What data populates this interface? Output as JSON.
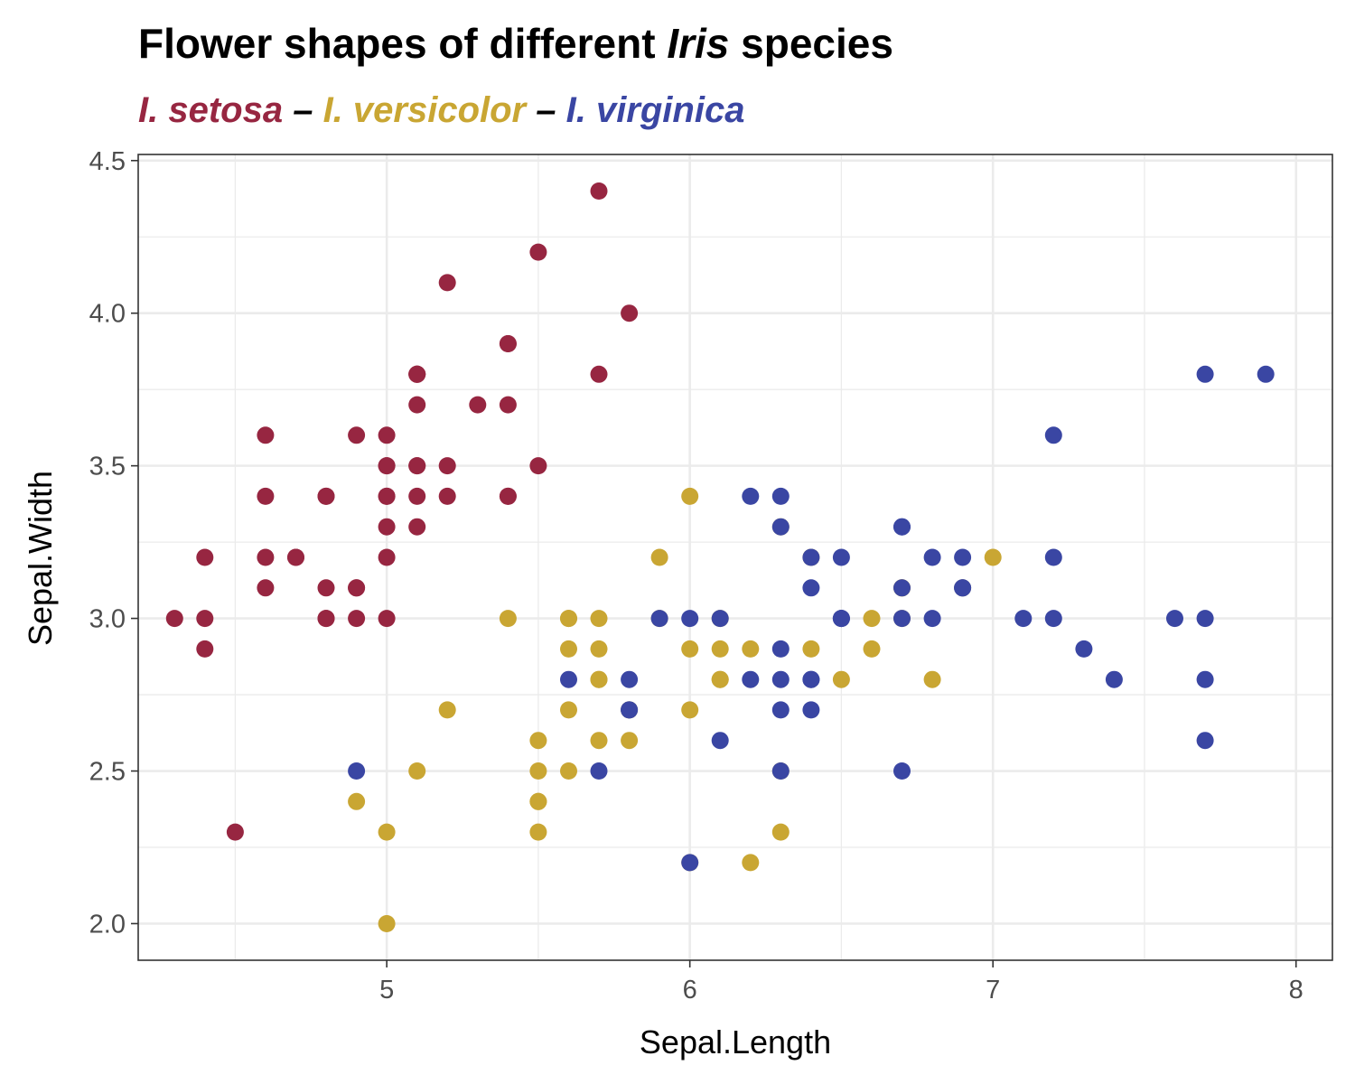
{
  "chart_data": {
    "type": "scatter",
    "title": {
      "prefix": "Flower shapes of different ",
      "italic": "Iris",
      "suffix": " species"
    },
    "subtitle": {
      "parts": [
        {
          "text": "I. setosa",
          "series": "setosa"
        },
        {
          "text": " – ",
          "series": null
        },
        {
          "text": "I. versicolor",
          "series": "versicolor"
        },
        {
          "text": " – ",
          "series": null
        },
        {
          "text": "I. virginica",
          "series": "virginica"
        }
      ]
    },
    "xlabel": "Sepal.Length",
    "ylabel": "Sepal.Width",
    "xlim": [
      4.18,
      8.12
    ],
    "ylim": [
      1.88,
      4.52
    ],
    "x_ticks": [
      5,
      6,
      7,
      8
    ],
    "x_tick_labels": [
      "5",
      "6",
      "7",
      "8"
    ],
    "y_ticks": [
      2.0,
      2.5,
      3.0,
      3.5,
      4.0,
      4.5
    ],
    "y_tick_labels": [
      "2.0",
      "2.5",
      "3.0",
      "3.5",
      "4.0",
      "4.5"
    ],
    "grid": true,
    "legend": "none",
    "series": [
      {
        "key": "setosa",
        "color": "#972641",
        "points": [
          [
            5.1,
            3.5
          ],
          [
            4.9,
            3.0
          ],
          [
            4.7,
            3.2
          ],
          [
            4.6,
            3.1
          ],
          [
            5.0,
            3.6
          ],
          [
            5.4,
            3.9
          ],
          [
            4.6,
            3.4
          ],
          [
            5.0,
            3.4
          ],
          [
            4.4,
            2.9
          ],
          [
            4.9,
            3.1
          ],
          [
            5.4,
            3.7
          ],
          [
            4.8,
            3.4
          ],
          [
            4.8,
            3.0
          ],
          [
            4.3,
            3.0
          ],
          [
            5.8,
            4.0
          ],
          [
            5.7,
            4.4
          ],
          [
            5.4,
            3.9
          ],
          [
            5.1,
            3.5
          ],
          [
            5.7,
            3.8
          ],
          [
            5.1,
            3.8
          ],
          [
            5.4,
            3.4
          ],
          [
            5.1,
            3.7
          ],
          [
            4.6,
            3.6
          ],
          [
            5.1,
            3.3
          ],
          [
            4.8,
            3.4
          ],
          [
            5.0,
            3.0
          ],
          [
            5.0,
            3.4
          ],
          [
            5.2,
            3.5
          ],
          [
            5.2,
            3.4
          ],
          [
            4.7,
            3.2
          ],
          [
            4.8,
            3.1
          ],
          [
            5.4,
            3.4
          ],
          [
            5.2,
            4.1
          ],
          [
            5.5,
            4.2
          ],
          [
            4.9,
            3.1
          ],
          [
            5.0,
            3.2
          ],
          [
            5.5,
            3.5
          ],
          [
            4.9,
            3.6
          ],
          [
            4.4,
            3.0
          ],
          [
            5.1,
            3.4
          ],
          [
            5.0,
            3.5
          ],
          [
            4.5,
            2.3
          ],
          [
            4.4,
            3.2
          ],
          [
            5.0,
            3.5
          ],
          [
            5.1,
            3.8
          ],
          [
            4.8,
            3.0
          ],
          [
            5.1,
            3.8
          ],
          [
            4.6,
            3.2
          ],
          [
            5.3,
            3.7
          ],
          [
            5.0,
            3.3
          ]
        ]
      },
      {
        "key": "versicolor",
        "color": "#c9a633",
        "points": [
          [
            7.0,
            3.2
          ],
          [
            6.4,
            3.2
          ],
          [
            6.9,
            3.1
          ],
          [
            5.5,
            2.3
          ],
          [
            6.5,
            2.8
          ],
          [
            5.7,
            2.8
          ],
          [
            6.3,
            3.3
          ],
          [
            4.9,
            2.4
          ],
          [
            6.6,
            2.9
          ],
          [
            5.2,
            2.7
          ],
          [
            5.0,
            2.0
          ],
          [
            5.9,
            3.0
          ],
          [
            6.0,
            2.2
          ],
          [
            6.1,
            2.9
          ],
          [
            5.6,
            2.9
          ],
          [
            6.7,
            3.1
          ],
          [
            5.6,
            3.0
          ],
          [
            5.8,
            2.7
          ],
          [
            6.2,
            2.2
          ],
          [
            5.6,
            2.5
          ],
          [
            5.9,
            3.2
          ],
          [
            6.1,
            2.8
          ],
          [
            6.3,
            2.5
          ],
          [
            6.1,
            2.8
          ],
          [
            6.4,
            2.9
          ],
          [
            6.6,
            3.0
          ],
          [
            6.8,
            2.8
          ],
          [
            6.7,
            3.0
          ],
          [
            6.0,
            2.9
          ],
          [
            5.7,
            2.6
          ],
          [
            5.5,
            2.4
          ],
          [
            5.5,
            2.4
          ],
          [
            5.8,
            2.7
          ],
          [
            6.0,
            2.7
          ],
          [
            5.4,
            3.0
          ],
          [
            6.0,
            3.4
          ],
          [
            6.7,
            3.1
          ],
          [
            6.3,
            2.3
          ],
          [
            5.6,
            3.0
          ],
          [
            5.5,
            2.5
          ],
          [
            5.5,
            2.6
          ],
          [
            6.1,
            3.0
          ],
          [
            5.8,
            2.6
          ],
          [
            5.0,
            2.3
          ],
          [
            5.6,
            2.7
          ],
          [
            5.7,
            3.0
          ],
          [
            5.7,
            2.9
          ],
          [
            6.2,
            2.9
          ],
          [
            5.1,
            2.5
          ],
          [
            5.7,
            2.8
          ]
        ]
      },
      {
        "key": "virginica",
        "color": "#3a46a3",
        "points": [
          [
            6.3,
            3.3
          ],
          [
            5.8,
            2.7
          ],
          [
            7.1,
            3.0
          ],
          [
            6.3,
            2.9
          ],
          [
            6.5,
            3.0
          ],
          [
            7.6,
            3.0
          ],
          [
            4.9,
            2.5
          ],
          [
            7.3,
            2.9
          ],
          [
            6.7,
            2.5
          ],
          [
            7.2,
            3.6
          ],
          [
            6.5,
            3.2
          ],
          [
            6.4,
            2.7
          ],
          [
            6.8,
            3.0
          ],
          [
            5.7,
            2.5
          ],
          [
            5.8,
            2.8
          ],
          [
            6.4,
            3.2
          ],
          [
            6.5,
            3.0
          ],
          [
            7.7,
            3.8
          ],
          [
            7.7,
            2.6
          ],
          [
            6.0,
            2.2
          ],
          [
            6.9,
            3.2
          ],
          [
            5.6,
            2.8
          ],
          [
            7.7,
            2.8
          ],
          [
            6.3,
            2.7
          ],
          [
            6.7,
            3.3
          ],
          [
            7.2,
            3.2
          ],
          [
            6.2,
            2.8
          ],
          [
            6.1,
            3.0
          ],
          [
            6.4,
            2.8
          ],
          [
            7.2,
            3.0
          ],
          [
            7.4,
            2.8
          ],
          [
            7.9,
            3.8
          ],
          [
            6.4,
            2.8
          ],
          [
            6.3,
            2.8
          ],
          [
            6.1,
            2.6
          ],
          [
            7.7,
            3.0
          ],
          [
            6.3,
            3.4
          ],
          [
            6.4,
            3.1
          ],
          [
            6.0,
            3.0
          ],
          [
            6.9,
            3.1
          ],
          [
            6.7,
            3.1
          ],
          [
            6.9,
            3.1
          ],
          [
            5.8,
            2.7
          ],
          [
            6.8,
            3.2
          ],
          [
            6.7,
            3.3
          ],
          [
            6.7,
            3.0
          ],
          [
            6.3,
            2.5
          ],
          [
            6.5,
            3.0
          ],
          [
            6.2,
            3.4
          ],
          [
            5.9,
            3.0
          ]
        ]
      }
    ]
  }
}
